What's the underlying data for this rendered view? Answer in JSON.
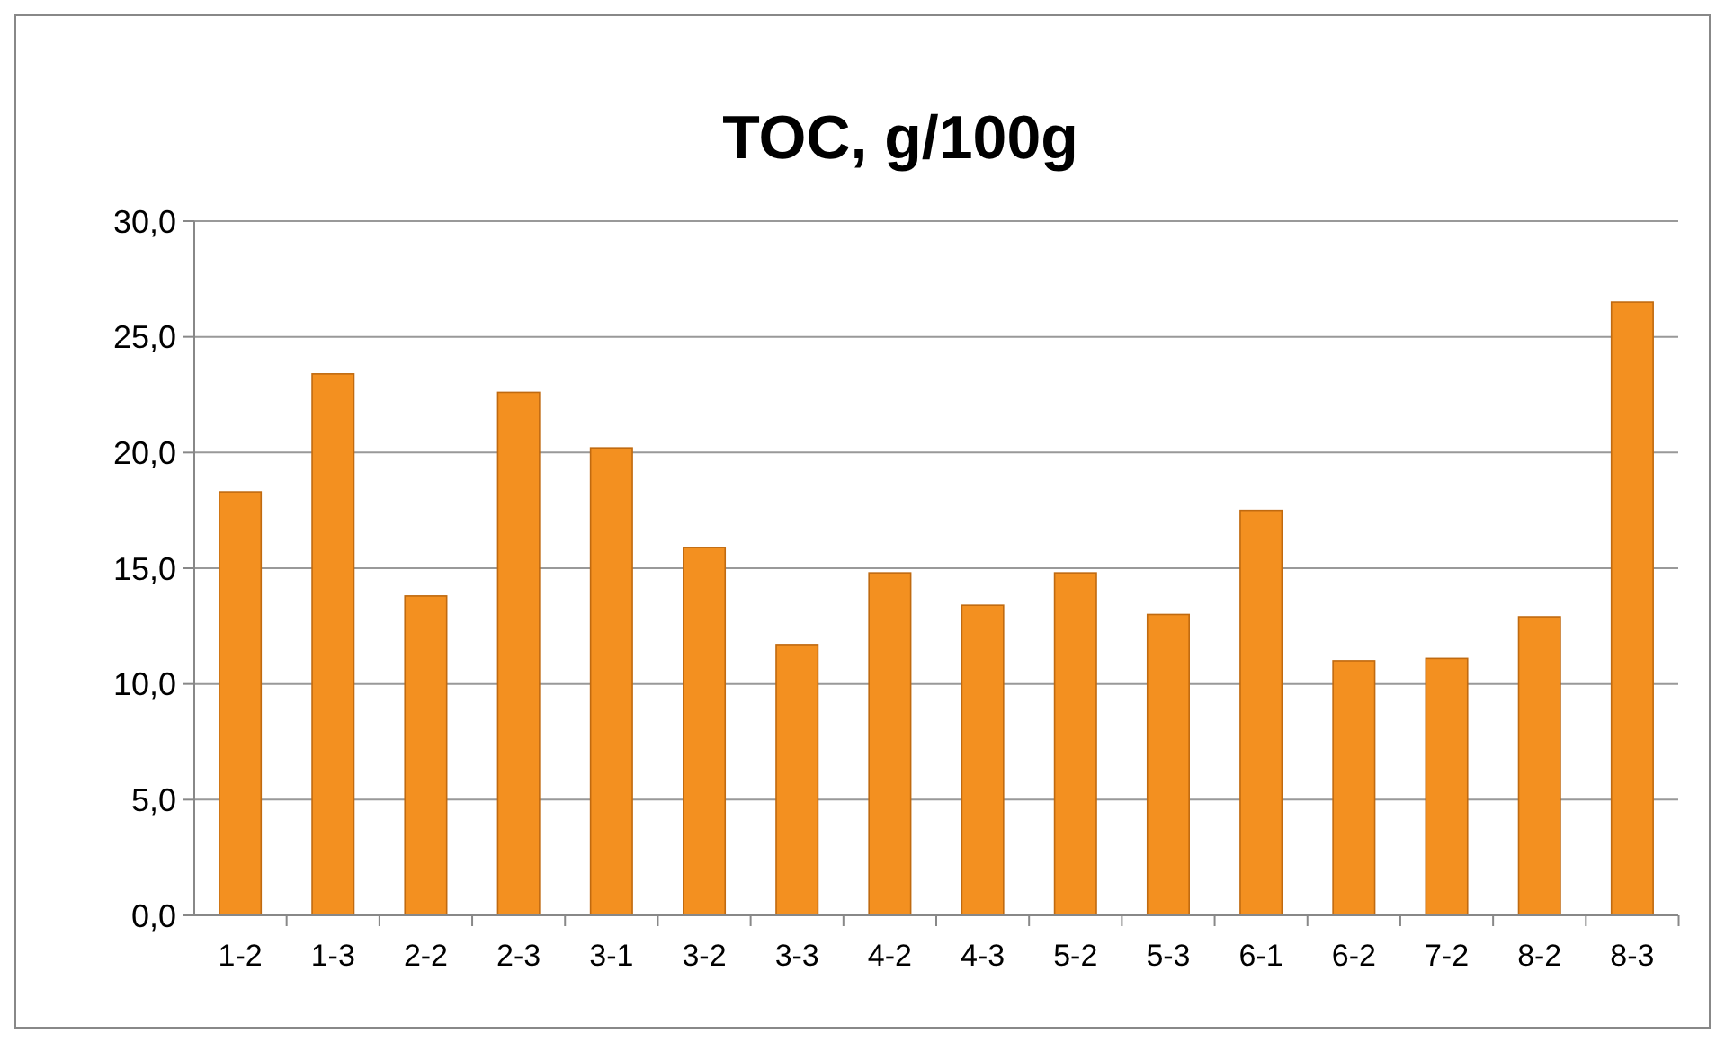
{
  "chart_data": {
    "type": "bar",
    "title": "TOC, g/100g",
    "categories": [
      "1-2",
      "1-3",
      "2-2",
      "2-3",
      "3-1",
      "3-2",
      "3-3",
      "4-2",
      "4-3",
      "5-2",
      "5-3",
      "6-1",
      "6-2",
      "7-2",
      "8-2",
      "8-3"
    ],
    "values": [
      18.3,
      23.4,
      13.8,
      22.6,
      20.2,
      15.9,
      11.7,
      14.8,
      13.4,
      14.8,
      13.0,
      17.5,
      11.0,
      11.1,
      12.9,
      26.5
    ],
    "color": "#f39020",
    "ylim": [
      0,
      30
    ],
    "yticks": [
      {
        "value": 0,
        "label": "0,0"
      },
      {
        "value": 5,
        "label": "5,0"
      },
      {
        "value": 10,
        "label": "10,0"
      },
      {
        "value": 15,
        "label": "15,0"
      },
      {
        "value": 20,
        "label": "20,0"
      },
      {
        "value": 25,
        "label": "25,0"
      },
      {
        "value": 30,
        "label": "30,0"
      }
    ],
    "grid": "y"
  }
}
